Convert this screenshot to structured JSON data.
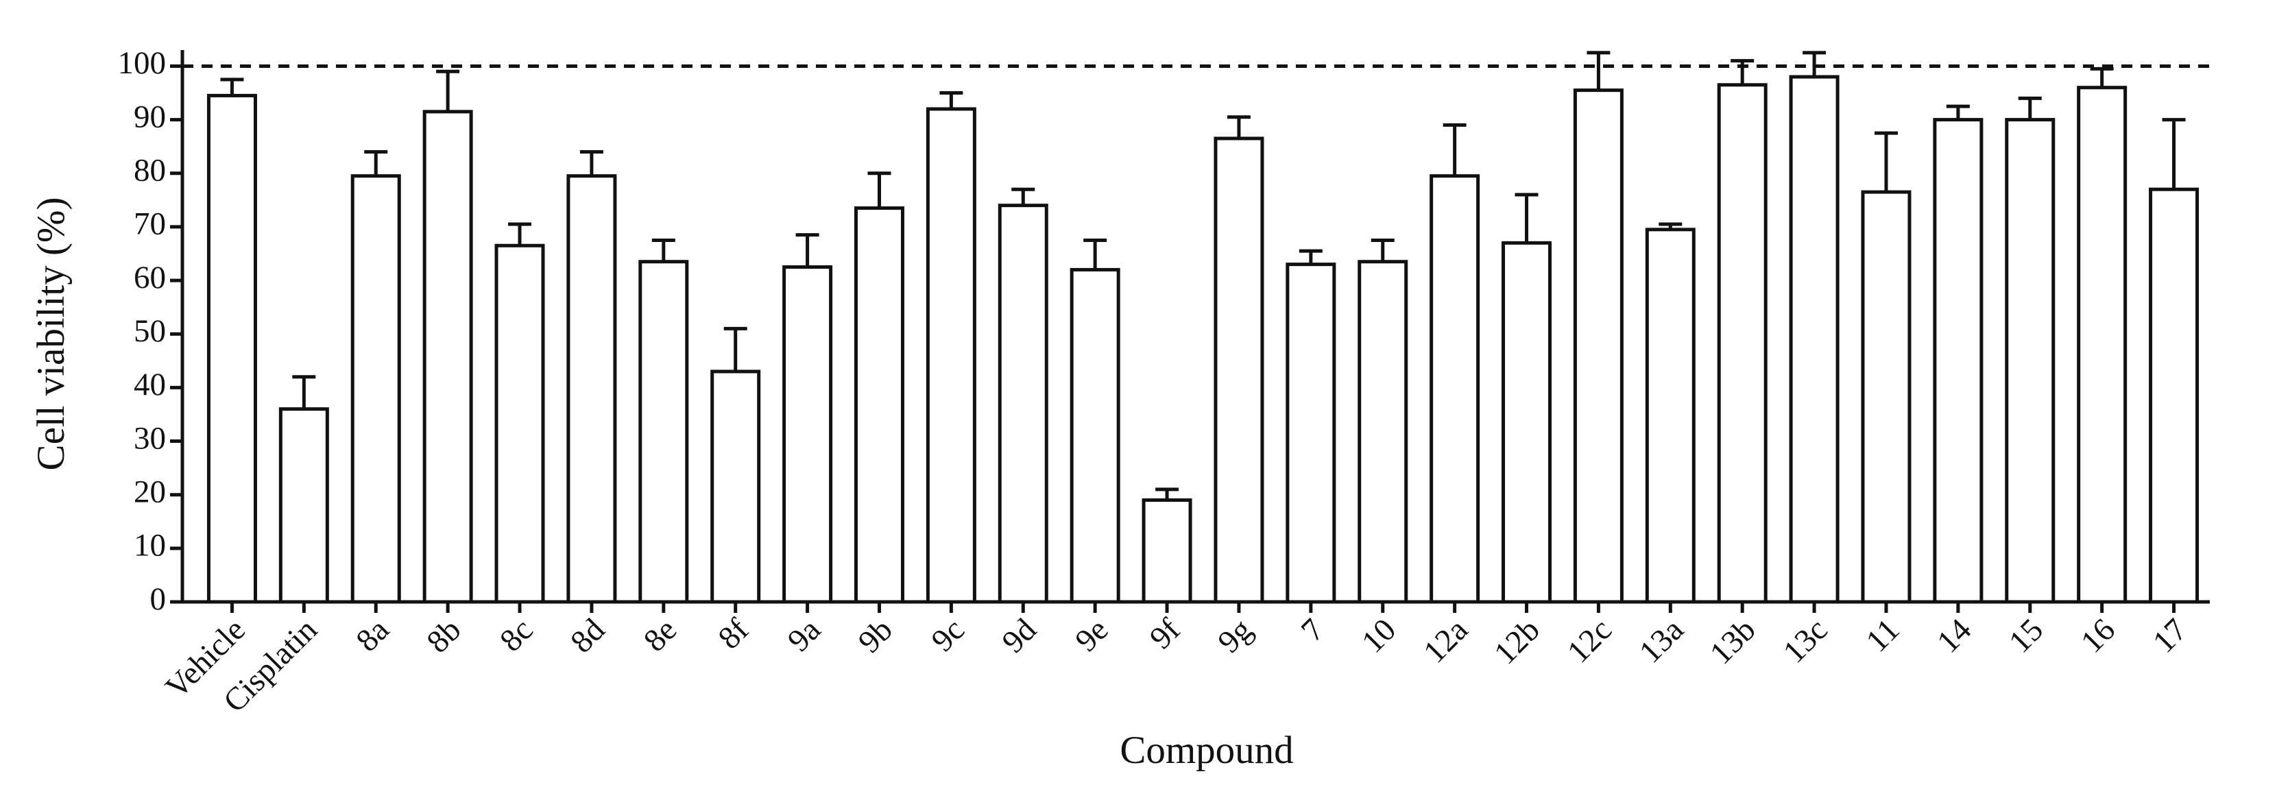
{
  "chart_data": {
    "type": "bar",
    "x_label": "Compound",
    "y_label": "Cell viability  (%)",
    "categories": [
      "Vehicle",
      "Cisplatin",
      "8a",
      "8b",
      "8c",
      "8d",
      "8e",
      "8f",
      "9a",
      "9b",
      "9c",
      "9d",
      "9e",
      "9f",
      "9g",
      "7",
      "10",
      "12a",
      "12b",
      "12c",
      "13a",
      "13b",
      "13c",
      "11",
      "14",
      "15",
      "16",
      "17"
    ],
    "values": [
      94.5,
      36,
      79.5,
      91.5,
      66.5,
      79.5,
      63.5,
      43,
      62.5,
      73.5,
      92,
      74,
      62,
      19,
      86.5,
      63,
      63.5,
      79.5,
      67,
      95.5,
      69.5,
      96.5,
      98,
      76.5,
      90,
      90,
      96,
      77
    ],
    "errors": [
      3,
      6,
      4.5,
      7.5,
      4,
      4.5,
      4,
      8,
      6,
      6.5,
      3,
      3,
      5.5,
      2,
      4,
      2.5,
      4,
      9.5,
      9,
      7,
      1,
      4.5,
      4.5,
      11,
      2.5,
      4,
      3.5,
      13
    ],
    "color": "#ffffff",
    "reference_line": 100,
    "ylim": [
      0,
      103
    ],
    "yticks": [
      0,
      10,
      20,
      30,
      40,
      50,
      60,
      70,
      80,
      90,
      100
    ],
    "grid": false
  }
}
